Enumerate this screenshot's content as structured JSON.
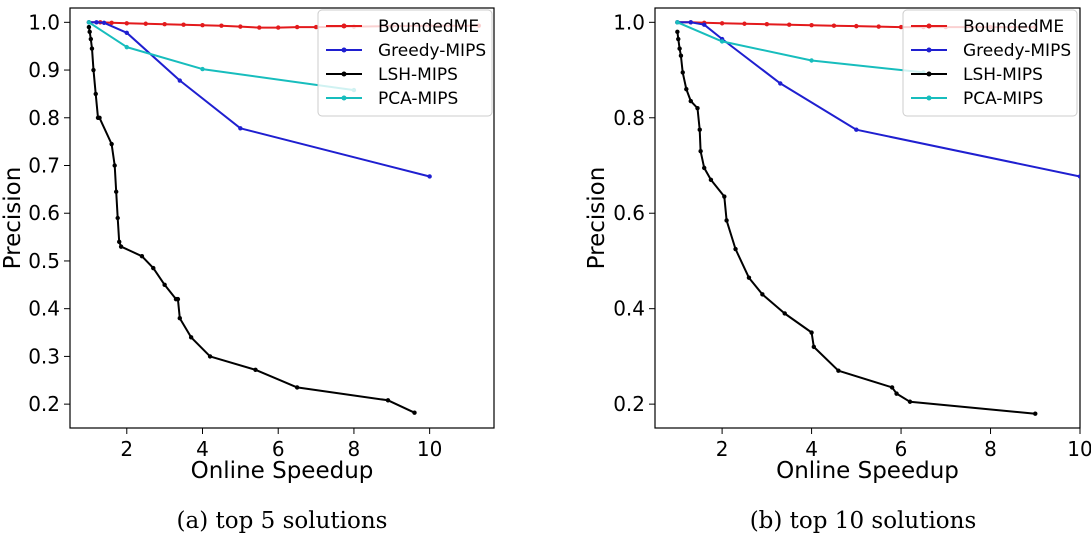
{
  "chart_data": [
    {
      "type": "line",
      "id": "a",
      "caption": "(a) top 5 solutions",
      "xlabel": "Online Speedup",
      "ylabel": "Precision",
      "xlim": [
        0.5,
        11.7
      ],
      "ylim": [
        0.15,
        1.03
      ],
      "xticks": [
        2,
        4,
        6,
        8,
        10
      ],
      "xtick_labels": [
        "2",
        "4",
        "6",
        "8",
        "10"
      ],
      "yticks": [
        0.2,
        0.3,
        0.4,
        0.5,
        0.6,
        0.7,
        0.8,
        0.9,
        1.0
      ],
      "ytick_labels": [
        "0.2",
        "0.3",
        "0.4",
        "0.5",
        "0.6",
        "0.7",
        "0.8",
        "0.9",
        "1.0"
      ],
      "legend_loc": "top-right",
      "series": [
        {
          "name": "BoundedME",
          "color": "#e31a1c",
          "x": [
            1.0,
            1.3,
            1.6,
            2.0,
            2.5,
            3.0,
            3.5,
            4.0,
            4.5,
            5.0,
            5.5,
            6.0,
            6.5,
            7.0,
            8.0,
            9.0,
            10.0,
            11.3
          ],
          "y": [
            1.0,
            1.0,
            0.999,
            0.998,
            0.997,
            0.996,
            0.995,
            0.994,
            0.993,
            0.991,
            0.989,
            0.989,
            0.99,
            0.99,
            0.991,
            0.992,
            0.993,
            0.993
          ]
        },
        {
          "name": "Greedy-MIPS",
          "color": "#1f1fd0",
          "x": [
            1.0,
            1.2,
            1.4,
            2.0,
            3.4,
            5.0,
            10.0
          ],
          "y": [
            1.0,
            1.0,
            0.999,
            0.978,
            0.878,
            0.778,
            0.677
          ]
        },
        {
          "name": "LSH-MIPS",
          "color": "#000000",
          "x": [
            1.0,
            1.02,
            1.05,
            1.08,
            1.12,
            1.18,
            1.24,
            1.28,
            1.6,
            1.68,
            1.72,
            1.76,
            1.8,
            1.85,
            2.4,
            2.7,
            3.0,
            3.3,
            3.35,
            3.4,
            3.7,
            4.2,
            5.4,
            6.5,
            8.9,
            9.6
          ],
          "y": [
            0.99,
            0.98,
            0.965,
            0.945,
            0.9,
            0.85,
            0.8,
            0.8,
            0.745,
            0.7,
            0.645,
            0.59,
            0.54,
            0.53,
            0.51,
            0.485,
            0.45,
            0.42,
            0.42,
            0.38,
            0.34,
            0.3,
            0.272,
            0.235,
            0.208,
            0.182
          ]
        },
        {
          "name": "PCA-MIPS",
          "color": "#17bdbd",
          "x": [
            1.0,
            2.0,
            4.0,
            8.0
          ],
          "y": [
            1.0,
            0.948,
            0.902,
            0.858
          ]
        }
      ]
    },
    {
      "type": "line",
      "id": "b",
      "caption": "(b) top 10 solutions",
      "xlabel": "Online Speedup",
      "ylabel": "Precision",
      "xlim": [
        0.5,
        10.0
      ],
      "ylim": [
        0.15,
        1.03
      ],
      "xticks": [
        2,
        4,
        6,
        8,
        10
      ],
      "xtick_labels": [
        "2",
        "4",
        "6",
        "8",
        "10"
      ],
      "yticks": [
        0.2,
        0.4,
        0.6,
        0.8,
        1.0
      ],
      "ytick_labels": [
        "0.2",
        "0.4",
        "0.6",
        "0.8",
        "1.0"
      ],
      "legend_loc": "top-right",
      "series": [
        {
          "name": "BoundedME",
          "color": "#e31a1c",
          "x": [
            1.0,
            1.3,
            1.6,
            2.0,
            2.5,
            3.0,
            3.5,
            4.0,
            4.5,
            5.0,
            5.5,
            6.0,
            6.5,
            7.0,
            8.0,
            9.0
          ],
          "y": [
            1.0,
            1.0,
            0.999,
            0.998,
            0.997,
            0.996,
            0.995,
            0.994,
            0.993,
            0.992,
            0.991,
            0.99,
            0.99,
            0.99,
            0.99,
            0.99
          ]
        },
        {
          "name": "Greedy-MIPS",
          "color": "#1f1fd0",
          "x": [
            1.0,
            1.3,
            1.6,
            2.0,
            3.3,
            5.0,
            10.0
          ],
          "y": [
            1.0,
            1.0,
            0.995,
            0.965,
            0.872,
            0.775,
            0.677
          ]
        },
        {
          "name": "LSH-MIPS",
          "color": "#000000",
          "x": [
            1.0,
            1.02,
            1.05,
            1.08,
            1.12,
            1.2,
            1.3,
            1.45,
            1.5,
            1.52,
            1.6,
            1.75,
            2.05,
            2.1,
            2.3,
            2.6,
            2.9,
            3.4,
            4.0,
            4.05,
            4.6,
            5.8,
            5.9,
            6.2,
            9.0
          ],
          "y": [
            0.98,
            0.965,
            0.945,
            0.93,
            0.895,
            0.86,
            0.835,
            0.82,
            0.775,
            0.73,
            0.695,
            0.67,
            0.635,
            0.585,
            0.525,
            0.465,
            0.43,
            0.39,
            0.35,
            0.32,
            0.27,
            0.235,
            0.222,
            0.205,
            0.18
          ]
        },
        {
          "name": "PCA-MIPS",
          "color": "#17bdbd",
          "x": [
            1.0,
            2.0,
            4.0,
            6.5
          ],
          "y": [
            1.0,
            0.96,
            0.92,
            0.895
          ]
        }
      ]
    }
  ]
}
